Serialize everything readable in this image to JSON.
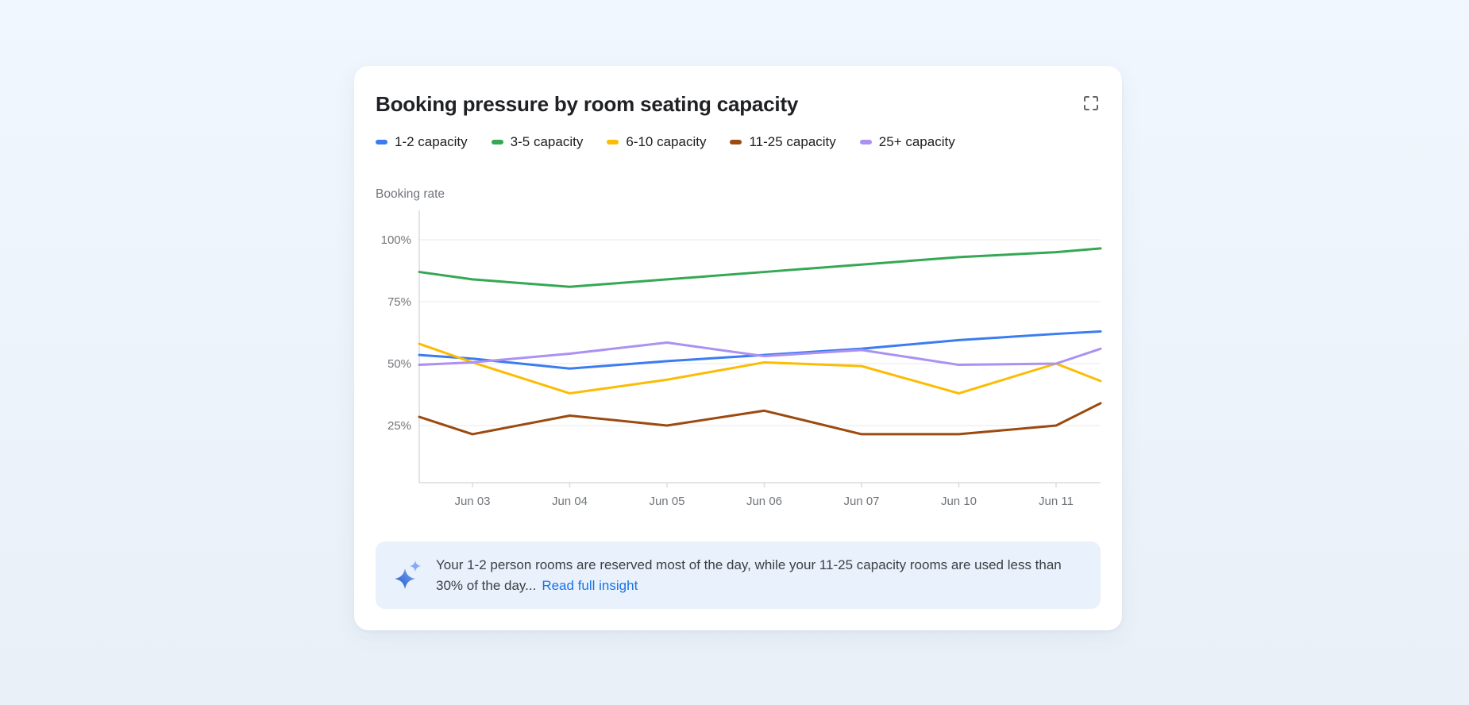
{
  "card": {
    "title": "Booking pressure by room seating capacity"
  },
  "icons": {
    "expand": "fullscreen-expand-icon",
    "insight": "ai-sparkle-icon"
  },
  "chart_data": {
    "type": "line",
    "title": "Booking pressure by room seating capacity",
    "ylabel": "Booking rate",
    "xlabel": "",
    "x_tick_labels": [
      "Jun 03",
      "Jun 04",
      "Jun 05",
      "Jun 06",
      "Jun 07",
      "Jun 10",
      "Jun 11"
    ],
    "points_note": "Each series has 9 points: an unlabeled point at the left plot edge, the 7 labeled dates, and an unlabeled point at the right plot edge.",
    "y_ticks": [
      {
        "value": 100,
        "label": "100%"
      },
      {
        "value": 75,
        "label": "75%"
      },
      {
        "value": 50,
        "label": "50%"
      },
      {
        "value": 25,
        "label": "25%"
      }
    ],
    "ylim": [
      0,
      110
    ],
    "grid": "horizontal",
    "legend_position": "top",
    "series": [
      {
        "name": "1-2 capacity",
        "color": "#3b7cf0",
        "values": [
          53.5,
          52,
          48,
          51,
          53.5,
          56,
          59.5,
          62,
          63
        ]
      },
      {
        "name": "3-5 capacity",
        "color": "#34a853",
        "values": [
          87,
          84,
          81,
          84,
          87,
          90,
          93,
          95,
          96.5
        ]
      },
      {
        "name": "6-10 capacity",
        "color": "#fbbc04",
        "values": [
          58,
          50.5,
          38,
          43.5,
          50.5,
          49,
          38,
          50,
          43
        ]
      },
      {
        "name": "11-25 capacity",
        "color": "#9c4a10",
        "values": [
          28.5,
          21.5,
          29,
          25,
          31,
          21.5,
          21.5,
          25,
          34
        ]
      },
      {
        "name": "25+ capacity",
        "color": "#ab91f2",
        "values": [
          49.5,
          50.5,
          54,
          58.5,
          53,
          55.5,
          49.5,
          50,
          56
        ]
      }
    ]
  },
  "insight": {
    "icon": "ai-sparkle",
    "text": "Your 1-2 person rooms are reserved most of the day, while your 11-25 capacity rooms are used less than 30% of the day...",
    "link_label": "Read full insight"
  }
}
